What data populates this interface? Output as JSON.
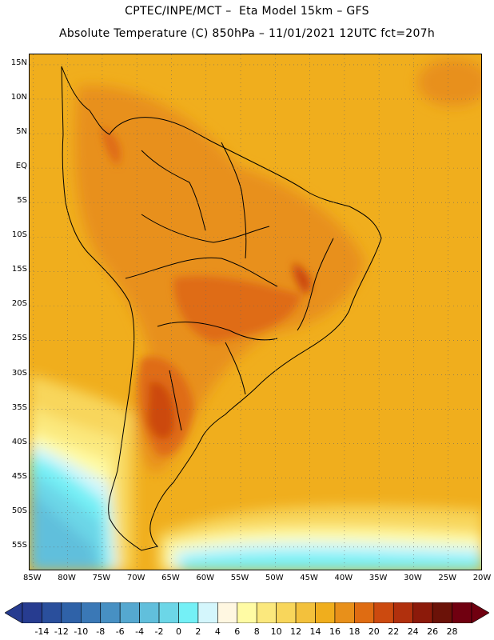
{
  "header": {
    "line1": "CPTEC/INPE/MCT –  Eta Model 15km – GFS",
    "line2": "Absolute Temperature (C) 850hPa – 11/01/2021 12UTC fct=207h"
  },
  "map": {
    "latitude_labels": [
      "15N",
      "10N",
      "5N",
      "EQ",
      "5S",
      "10S",
      "15S",
      "20S",
      "25S",
      "30S",
      "35S",
      "40S",
      "45S",
      "50S",
      "55S"
    ],
    "longitude_labels": [
      "85W",
      "80W",
      "75W",
      "70W",
      "65W",
      "60W",
      "55W",
      "50W",
      "45W",
      "40W",
      "35W",
      "30W",
      "25W",
      "20W"
    ],
    "lat_range": [
      16.5,
      -58.5
    ],
    "lon_range": [
      -85.5,
      -20.0
    ],
    "lat_ticks": [
      15,
      10,
      5,
      0,
      -5,
      -10,
      -15,
      -20,
      -25,
      -30,
      -35,
      -40,
      -45,
      -50,
      -55
    ],
    "lon_ticks": [
      -85,
      -80,
      -75,
      -70,
      -65,
      -60,
      -55,
      -50,
      -45,
      -40,
      -35,
      -30,
      -25,
      -20
    ]
  },
  "colorbar": {
    "labels": [
      "-14",
      "-12",
      "-10",
      "-8",
      "-6",
      "-4",
      "-2",
      "0",
      "2",
      "4",
      "6",
      "8",
      "10",
      "12",
      "14",
      "16",
      "18",
      "20",
      "22",
      "24",
      "26",
      "28"
    ],
    "colors": [
      "#273c90",
      "#2a4f9c",
      "#2f62a8",
      "#3a78b6",
      "#4790c3",
      "#55a8d0",
      "#61bfdc",
      "#6cd6e7",
      "#74f0f6",
      "#d4f6fc",
      "#fff7e1",
      "#fffba4",
      "#fbe87d",
      "#f8d65b",
      "#f3c13c",
      "#f0ae1d",
      "#e8901a",
      "#df6c12",
      "#cc4a0f",
      "#b1300d",
      "#8c1a0a",
      "#6b1208",
      "#700010"
    ],
    "under_color": "#273c90",
    "over_color": "#700010"
  }
}
